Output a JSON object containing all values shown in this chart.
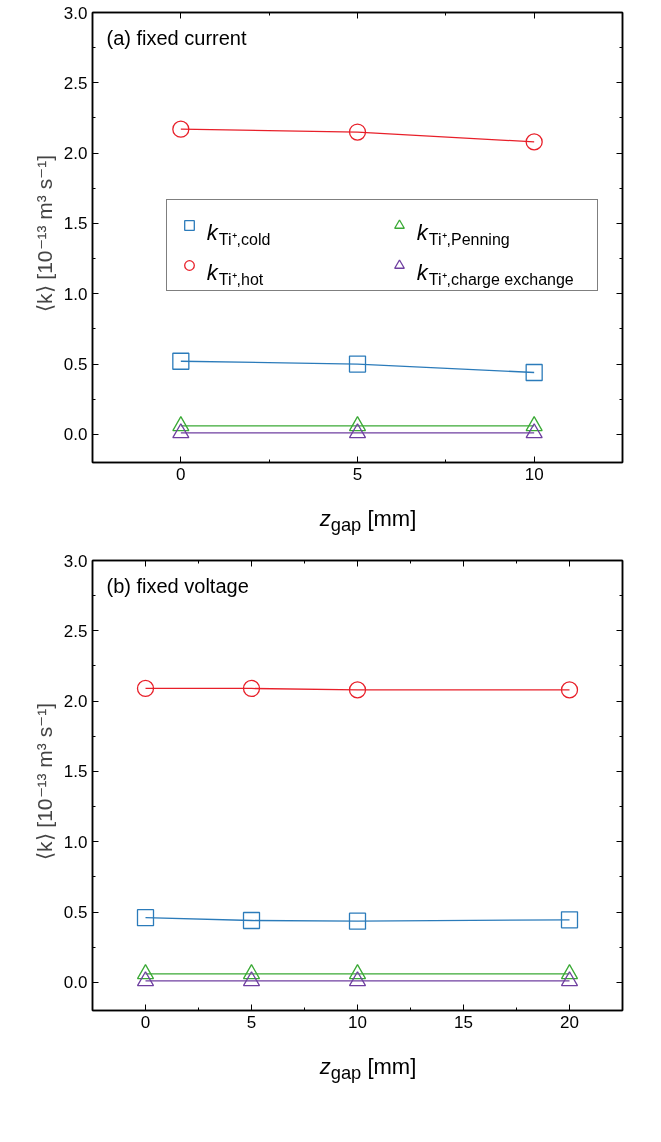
{
  "chart_data": [
    {
      "type": "line",
      "title": "(a)  fixed current",
      "xlabel": "z$_{gap}$ [mm]",
      "ylabel": "⟨k⟩ [10⁻¹³ m³ s⁻¹]",
      "x": [
        0,
        5,
        10
      ],
      "xlim": [
        -2.5,
        12.5
      ],
      "xticks": [
        0,
        5,
        10
      ],
      "ylim": [
        -0.2,
        3.0
      ],
      "yticks": [
        {
          "value": 0,
          "label": "0.0"
        },
        {
          "value": 0.5,
          "label": "0.5"
        },
        {
          "value": 1,
          "label": "1.0"
        },
        {
          "value": 1.5,
          "label": "1.5"
        },
        {
          "value": 2,
          "label": "2.0"
        },
        {
          "value": 2.5,
          "label": "2.5"
        },
        {
          "value": 3,
          "label": "3.0"
        }
      ],
      "grid": false,
      "legend": "center",
      "line_style": "solid",
      "series": [
        {
          "name": "k$_{Ti⁺,cold}$",
          "color": "#2b7bba",
          "marker": "square",
          "values": [
            0.52,
            0.5,
            0.44
          ]
        },
        {
          "name": "k$_{Ti⁺,hot}$",
          "color": "#e8202a",
          "marker": "circle",
          "values": [
            2.17,
            2.15,
            2.08
          ]
        },
        {
          "name": "k$_{Ti⁺,Penning}$",
          "color": "#3aa935",
          "marker": "triangle",
          "values": [
            0.06,
            0.06,
            0.06
          ]
        },
        {
          "name": "k$_{Ti⁺,charge exchange}$",
          "color": "#6f3fa0",
          "marker": "triangle",
          "values": [
            0.01,
            0.01,
            0.01
          ]
        }
      ]
    },
    {
      "type": "line",
      "title": "(b)  fixed voltage",
      "xlabel": "z$_{gap}$ [mm]",
      "ylabel": "⟨k⟩ [10⁻¹³ m³ s⁻¹]",
      "x": [
        0,
        5,
        10,
        20
      ],
      "xlim": [
        -2.5,
        22.5
      ],
      "xticks": [
        0,
        5,
        10,
        15,
        20
      ],
      "ylim": [
        -0.2,
        3.0
      ],
      "yticks": [
        {
          "value": 0,
          "label": "0.0"
        },
        {
          "value": 0.5,
          "label": "0.5"
        },
        {
          "value": 1,
          "label": "1.0"
        },
        {
          "value": 1.5,
          "label": "1.5"
        },
        {
          "value": 2,
          "label": "2.0"
        },
        {
          "value": 2.5,
          "label": "2.5"
        },
        {
          "value": 3,
          "label": "3.0"
        }
      ],
      "grid": false,
      "line_style": "solid",
      "series": [
        {
          "color": "#2b7bba",
          "marker": "square",
          "values": [
            0.46,
            0.44,
            0.435,
            0.445
          ]
        },
        {
          "color": "#e8202a",
          "marker": "circle",
          "values": [
            2.09,
            2.09,
            2.08,
            2.08
          ]
        },
        {
          "color": "#3aa935",
          "marker": "triangle",
          "values": [
            0.06,
            0.06,
            0.06,
            0.06
          ]
        },
        {
          "color": "#6f3fa0",
          "marker": "triangle",
          "values": [
            0.01,
            0.01,
            0.01,
            0.01
          ]
        }
      ]
    }
  ]
}
